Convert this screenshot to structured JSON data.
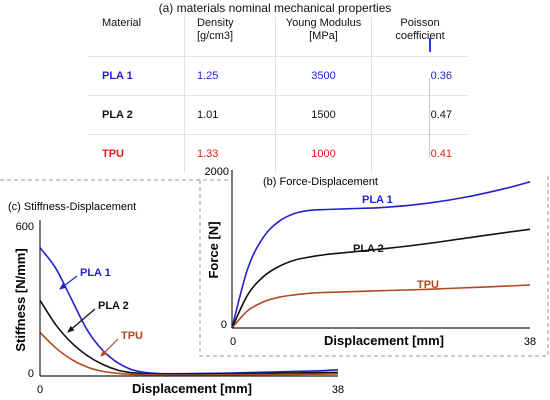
{
  "table": {
    "title": "(a) materials nominal mechanical properties",
    "headers": [
      {
        "line1": "Material",
        "line2": ""
      },
      {
        "line1": "Density",
        "line2": "[g/cm3]"
      },
      {
        "line1": "Young Modulus",
        "line2": "[MPa]"
      },
      {
        "line1": "Poisson",
        "line2": "coefficient"
      }
    ],
    "rows": [
      {
        "material": "PLA 1",
        "density": "1.25",
        "modulus": "3500",
        "poisson": "0.36",
        "color": "#1f1fd0"
      },
      {
        "material": "PLA 2",
        "density": "1.01",
        "modulus": "1500",
        "poisson": "0.47",
        "color": "#111111"
      },
      {
        "material": "TPU",
        "density": "1.33",
        "modulus": "1000",
        "poisson": "0.41",
        "color": "#e0201a"
      }
    ]
  },
  "chart_data": [
    {
      "type": "line",
      "title": "(b) Force-Displacement",
      "xlabel": "Displacement [mm]",
      "ylabel": "Force [N]",
      "xlim": [
        0,
        38
      ],
      "ylim": [
        0,
        2000
      ],
      "xticks": [
        "0",
        "38"
      ],
      "yticks": [
        "0",
        "2000"
      ],
      "series": [
        {
          "name": "PLA 1",
          "color": "#2222cc",
          "x": [
            0,
            2,
            4,
            6,
            8,
            10,
            12,
            15,
            20,
            25,
            30,
            35,
            38
          ],
          "y": [
            0,
            750,
            1150,
            1350,
            1450,
            1490,
            1500,
            1510,
            1530,
            1580,
            1660,
            1770,
            1850
          ]
        },
        {
          "name": "PLA 2",
          "color": "#111111",
          "x": [
            0,
            2,
            4,
            6,
            8,
            10,
            12,
            15,
            20,
            25,
            30,
            35,
            38
          ],
          "y": [
            0,
            420,
            650,
            780,
            860,
            900,
            930,
            960,
            1010,
            1070,
            1140,
            1210,
            1250
          ]
        },
        {
          "name": "TPU",
          "color": "#b04a20",
          "x": [
            0,
            2,
            4,
            6,
            8,
            10,
            12,
            15,
            20,
            25,
            30,
            35,
            38
          ],
          "y": [
            0,
            220,
            330,
            390,
            420,
            440,
            450,
            460,
            475,
            490,
            510,
            530,
            545
          ]
        }
      ]
    },
    {
      "type": "line",
      "title": "(c) Stiffness-Displacement",
      "xlabel": "Displacement [mm]",
      "ylabel": "Stiffness [N/mm]",
      "xlim": [
        0,
        38
      ],
      "ylim": [
        0,
        600
      ],
      "xticks": [
        "0",
        "38"
      ],
      "yticks": [
        "0",
        "600"
      ],
      "series": [
        {
          "name": "PLA 1",
          "color": "#2222cc",
          "x": [
            0,
            2,
            4,
            6,
            8,
            10,
            12,
            14,
            16,
            20,
            25,
            30,
            35,
            38
          ],
          "y": [
            500,
            420,
            300,
            180,
            100,
            50,
            22,
            12,
            9,
            10,
            12,
            16,
            20,
            24
          ]
        },
        {
          "name": "PLA 2",
          "color": "#111111",
          "x": [
            0,
            2,
            4,
            6,
            8,
            10,
            12,
            14,
            16,
            20,
            25,
            30,
            35,
            38
          ],
          "y": [
            295,
            200,
            130,
            80,
            45,
            22,
            12,
            8,
            7,
            8,
            9,
            11,
            13,
            14
          ]
        },
        {
          "name": "TPU",
          "color": "#b04a20",
          "x": [
            0,
            2,
            4,
            6,
            8,
            10,
            12,
            14,
            16,
            20,
            25,
            30,
            35,
            38
          ],
          "y": [
            170,
            110,
            65,
            35,
            18,
            10,
            6,
            5,
            4,
            4,
            5,
            6,
            7,
            8
          ]
        }
      ]
    }
  ]
}
